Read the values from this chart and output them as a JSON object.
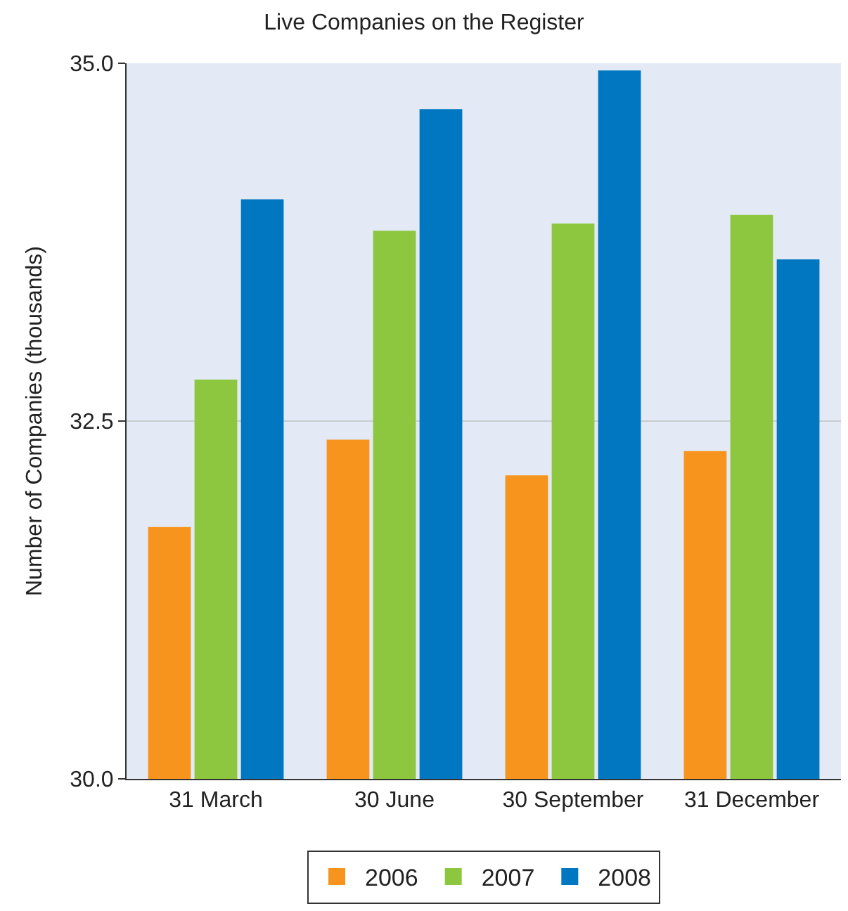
{
  "chart_data": {
    "type": "bar",
    "title": "Live Companies on the Register",
    "ylabel": "Number of Companies (thousands)",
    "categories": [
      "31 March",
      "30 June",
      "30 September",
      "31 December"
    ],
    "series": [
      {
        "name": "2006",
        "color": "#f7941d",
        "values": [
          31.76,
          32.37,
          32.12,
          32.29
        ]
      },
      {
        "name": "2007",
        "color": "#8dc63f",
        "values": [
          32.79,
          33.83,
          33.88,
          33.94
        ]
      },
      {
        "name": "2008",
        "color": "#0077c0",
        "values": [
          34.05,
          34.68,
          34.95,
          33.63
        ]
      }
    ],
    "ylim": [
      30,
      35
    ],
    "yticks": [
      {
        "value": 30,
        "label": "30.0"
      },
      32.5,
      {
        "value": 35,
        "label": "35.0"
      }
    ],
    "grid": "y",
    "legend": "bottom"
  }
}
